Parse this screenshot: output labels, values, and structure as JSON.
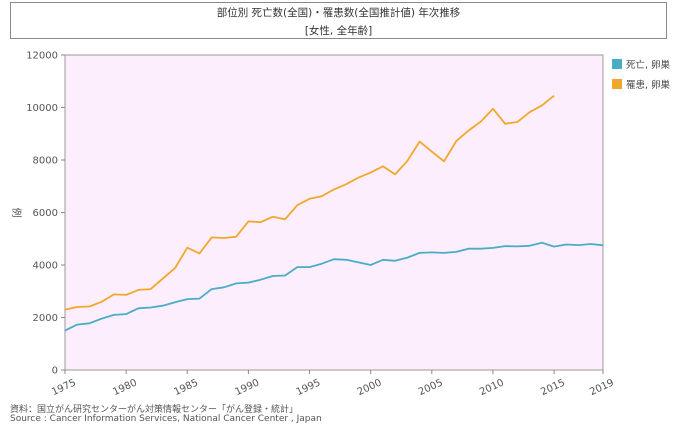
{
  "title_line1": "部位別 死亡数(全国)・罹患数(全国推計値) 年次推移",
  "title_line2": "[女性, 全年齢]",
  "source_line1": "資料：国立がん研究センターがん対策情報センター「がん登録・統計」",
  "source_line2": "Source : Cancer Information Services, National Cancer Center , Japan",
  "chart_data": {
    "type": "line",
    "ylabel": "例",
    "xlim": [
      1975,
      2019
    ],
    "ylim": [
      0,
      12000
    ],
    "x_ticks": [
      1975,
      1980,
      1985,
      1990,
      1995,
      2000,
      2005,
      2010,
      2015,
      2019
    ],
    "y_ticks": [
      0,
      2000,
      4000,
      6000,
      8000,
      10000,
      12000
    ],
    "x_tick_labels": [
      "1975",
      "1980",
      "1985",
      "1990",
      "1995",
      "2000",
      "2005",
      "2010",
      "2015",
      "2019"
    ],
    "y_tick_labels": [
      "0",
      "2000",
      "4000",
      "6000",
      "8000",
      "10000",
      "12000"
    ],
    "plot_background": "#fdeefd",
    "legend_position": "right",
    "series": [
      {
        "name": "死亡, 卵巣",
        "color": "#4bacc6",
        "x": [
          1975,
          1976,
          1977,
          1978,
          1979,
          1980,
          1981,
          1982,
          1983,
          1984,
          1985,
          1986,
          1987,
          1988,
          1989,
          1990,
          1991,
          1992,
          1993,
          1994,
          1995,
          1996,
          1997,
          1998,
          1999,
          2000,
          2001,
          2002,
          2003,
          2004,
          2005,
          2006,
          2007,
          2008,
          2009,
          2010,
          2011,
          2012,
          2013,
          2014,
          2015,
          2016,
          2017,
          2018,
          2019
        ],
        "values": [
          1500,
          1730,
          1780,
          1960,
          2100,
          2130,
          2350,
          2380,
          2450,
          2580,
          2700,
          2720,
          3080,
          3150,
          3300,
          3330,
          3440,
          3580,
          3600,
          3920,
          3920,
          4050,
          4220,
          4200,
          4100,
          4000,
          4200,
          4160,
          4280,
          4460,
          4480,
          4460,
          4500,
          4620,
          4620,
          4650,
          4720,
          4710,
          4730,
          4850,
          4700,
          4780,
          4760,
          4800,
          4750
        ]
      },
      {
        "name": "罹患, 卵巣",
        "color": "#f0a82c",
        "x": [
          1975,
          1976,
          1977,
          1978,
          1979,
          1980,
          1981,
          1982,
          1983,
          1984,
          1985,
          1986,
          1987,
          1988,
          1989,
          1990,
          1991,
          1992,
          1993,
          1994,
          1995,
          1996,
          1997,
          1998,
          1999,
          2000,
          2001,
          2002,
          2003,
          2004,
          2005,
          2006,
          2007,
          2008,
          2009,
          2010,
          2011,
          2012,
          2013,
          2014,
          2015,
          2016
        ],
        "values": [
          2300,
          2400,
          2420,
          2600,
          2880,
          2860,
          3050,
          3080,
          3480,
          3880,
          4660,
          4440,
          5050,
          5030,
          5080,
          5660,
          5630,
          5840,
          5740,
          6280,
          6520,
          6620,
          6880,
          7080,
          7330,
          7520,
          7760,
          7450,
          7970,
          8700,
          8320,
          7950,
          8720,
          9120,
          9460,
          9950,
          9380,
          9450,
          9820,
          10080,
          10450,
          null
        ]
      }
    ]
  }
}
